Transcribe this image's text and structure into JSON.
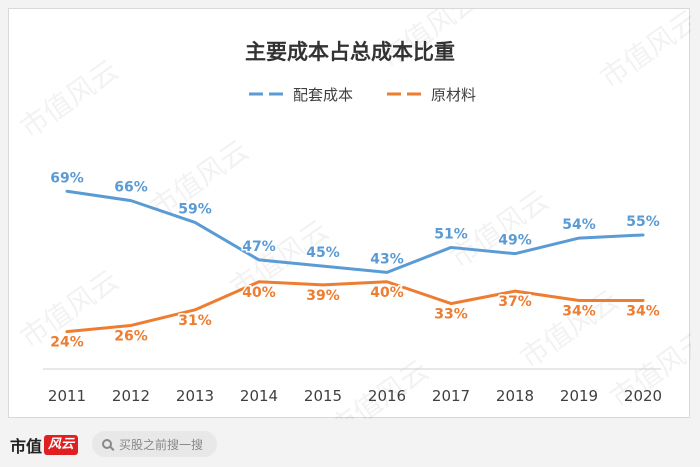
{
  "chart_data": {
    "type": "line",
    "title": "主要成本占总成本比重",
    "categories": [
      "2011",
      "2012",
      "2013",
      "2014",
      "2015",
      "2016",
      "2017",
      "2018",
      "2019",
      "2020"
    ],
    "series": [
      {
        "name": "配套成本",
        "color": "#5b9bd5",
        "values": [
          69,
          66,
          59,
          47,
          45,
          43,
          51,
          49,
          54,
          55
        ],
        "labels": [
          "69%",
          "66%",
          "59%",
          "47%",
          "45%",
          "43%",
          "51%",
          "49%",
          "54%",
          "55%"
        ]
      },
      {
        "name": "原材料",
        "color": "#ed7d31",
        "values": [
          24,
          26,
          31,
          40,
          39,
          40,
          33,
          37,
          34,
          34
        ],
        "labels": [
          "24%",
          "26%",
          "31%",
          "40%",
          "39%",
          "40%",
          "33%",
          "37%",
          "34%",
          "34%"
        ]
      }
    ],
    "ylim": [
      0,
      100
    ],
    "grid": false,
    "legend_position": "top"
  },
  "watermark": "市值风云",
  "footer": {
    "brand": "市值",
    "brand_badge": "风云",
    "search_placeholder": "买股之前搜一搜"
  }
}
